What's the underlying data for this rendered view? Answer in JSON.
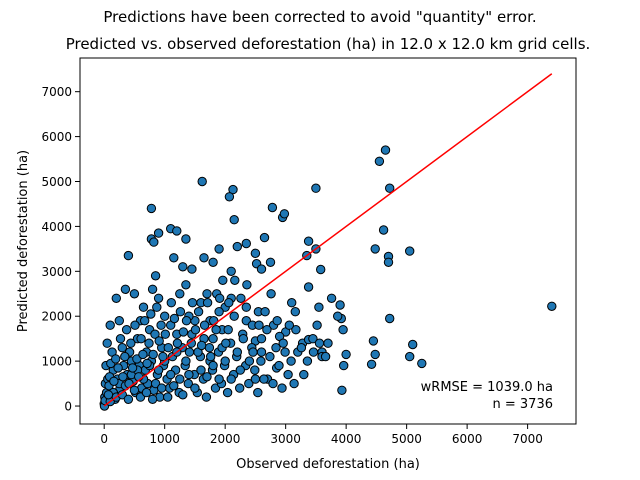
{
  "suptitle": "Predictions have been corrected to avoid \"quantity\" error.",
  "chart_data": {
    "type": "scatter",
    "title": "Predicted vs. observed deforestation (ha) in 12.0 x 12.0 km grid cells.",
    "xlabel": "Observed deforestation (ha)",
    "ylabel": "Predicted deforestation (ha)",
    "xlim": [
      -400,
      7800
    ],
    "ylim": [
      -400,
      7750
    ],
    "xticks": [
      0,
      1000,
      2000,
      3000,
      4000,
      5000,
      6000,
      7000
    ],
    "yticks": [
      0,
      1000,
      2000,
      3000,
      4000,
      5000,
      6000,
      7000
    ],
    "grid": false,
    "identity_line": {
      "from": [
        0,
        0
      ],
      "to": [
        7400,
        7400
      ],
      "color": "#ff0000"
    },
    "point_color": "#1f77b4",
    "point_edge_color": "#000000",
    "annotation_lines": [
      "wRMSE = 1039.0 ha",
      "n = 3736"
    ],
    "annotation_position": "bottom-right",
    "points": [
      [
        7400,
        2220
      ],
      [
        4650,
        5700
      ],
      [
        4550,
        5450
      ],
      [
        4720,
        4850
      ],
      [
        3500,
        4850
      ],
      [
        1620,
        5000
      ],
      [
        2130,
        4820
      ],
      [
        2070,
        4660
      ],
      [
        2780,
        4420
      ],
      [
        2950,
        4200
      ],
      [
        2980,
        4280
      ],
      [
        780,
        4400
      ],
      [
        4620,
        3920
      ],
      [
        4700,
        3330
      ],
      [
        4700,
        3200
      ],
      [
        5050,
        3450
      ],
      [
        4480,
        3500
      ],
      [
        3380,
        3670
      ],
      [
        3350,
        3350
      ],
      [
        3500,
        3500
      ],
      [
        3580,
        3040
      ],
      [
        2650,
        3750
      ],
      [
        2520,
        3170
      ],
      [
        2600,
        3050
      ],
      [
        2750,
        3200
      ],
      [
        2500,
        3400
      ],
      [
        2150,
        4150
      ],
      [
        2200,
        3550
      ],
      [
        2350,
        3620
      ],
      [
        2100,
        3000
      ],
      [
        1900,
        3500
      ],
      [
        1800,
        3200
      ],
      [
        1650,
        3300
      ],
      [
        1100,
        3950
      ],
      [
        1200,
        3900
      ],
      [
        900,
        3850
      ],
      [
        780,
        3720
      ],
      [
        820,
        3650
      ],
      [
        1350,
        3720
      ],
      [
        1150,
        3300
      ],
      [
        1450,
        3050
      ],
      [
        1300,
        3100
      ],
      [
        3380,
        2650
      ],
      [
        3550,
        2200
      ],
      [
        3100,
        2300
      ],
      [
        3170,
        1700
      ],
      [
        3280,
        1400
      ],
      [
        3380,
        1480
      ],
      [
        3900,
        2250
      ],
      [
        3920,
        1950
      ],
      [
        3950,
        1700
      ],
      [
        4720,
        1950
      ],
      [
        5100,
        1370
      ],
      [
        5250,
        950
      ],
      [
        5050,
        1100
      ],
      [
        4450,
        1450
      ],
      [
        4480,
        1150
      ],
      [
        4420,
        930
      ],
      [
        3930,
        350
      ],
      [
        4000,
        1150
      ],
      [
        3600,
        1200
      ],
      [
        3700,
        1400
      ],
      [
        3520,
        1800
      ],
      [
        3450,
        1500
      ],
      [
        3000,
        1650
      ],
      [
        3200,
        1200
      ],
      [
        2900,
        1550
      ],
      [
        2800,
        1800
      ],
      [
        2850,
        850
      ],
      [
        3300,
        700
      ],
      [
        3600,
        1100
      ],
      [
        2700,
        600
      ],
      [
        2600,
        1200
      ],
      [
        2500,
        1450
      ],
      [
        2350,
        1900
      ],
      [
        2100,
        2400
      ],
      [
        2000,
        2200
      ],
      [
        1950,
        1700
      ],
      [
        1900,
        2100
      ],
      [
        1800,
        1500
      ],
      [
        1750,
        1000
      ],
      [
        1700,
        2500
      ],
      [
        1600,
        2300
      ],
      [
        1500,
        1900
      ],
      [
        1400,
        2000
      ],
      [
        1350,
        2700
      ],
      [
        1250,
        2500
      ],
      [
        1200,
        1600
      ],
      [
        1100,
        1800
      ],
      [
        1000,
        2000
      ],
      [
        950,
        1300
      ],
      [
        900,
        2400
      ],
      [
        850,
        2900
      ],
      [
        800,
        2600
      ],
      [
        750,
        1700
      ],
      [
        700,
        1200
      ],
      [
        650,
        2200
      ],
      [
        600,
        1900
      ],
      [
        550,
        1500
      ],
      [
        500,
        2500
      ],
      [
        450,
        1000
      ],
      [
        400,
        3350
      ],
      [
        350,
        2600
      ],
      [
        300,
        1300
      ],
      [
        250,
        1900
      ],
      [
        200,
        2400
      ],
      [
        150,
        800
      ],
      [
        100,
        1800
      ],
      [
        50,
        1400
      ],
      [
        30,
        900
      ],
      [
        20,
        500
      ],
      [
        10,
        200
      ],
      [
        0,
        50
      ],
      [
        5,
        0
      ],
      [
        15,
        120
      ],
      [
        40,
        300
      ],
      [
        60,
        600
      ],
      [
        80,
        450
      ],
      [
        120,
        250
      ],
      [
        180,
        150
      ],
      [
        220,
        600
      ],
      [
        260,
        380
      ],
      [
        320,
        900
      ],
      [
        380,
        700
      ],
      [
        420,
        1200
      ],
      [
        480,
        550
      ],
      [
        520,
        300
      ],
      [
        580,
        900
      ],
      [
        620,
        400
      ],
      [
        680,
        800
      ],
      [
        720,
        500
      ],
      [
        780,
        1000
      ],
      [
        820,
        350
      ],
      [
        880,
        700
      ],
      [
        920,
        200
      ],
      [
        980,
        900
      ],
      [
        1040,
        600
      ],
      [
        1080,
        400
      ],
      [
        1130,
        1100
      ],
      [
        1180,
        800
      ],
      [
        1240,
        300
      ],
      [
        1290,
        1300
      ],
      [
        1340,
        900
      ],
      [
        1390,
        500
      ],
      [
        1440,
        1400
      ],
      [
        1490,
        700
      ],
      [
        1540,
        300
      ],
      [
        1590,
        1100
      ],
      [
        1640,
        600
      ],
      [
        1690,
        200
      ],
      [
        1740,
        1300
      ],
      [
        1790,
        800
      ],
      [
        1840,
        400
      ],
      [
        1890,
        1200
      ],
      [
        1940,
        500
      ],
      [
        1990,
        900
      ],
      [
        2040,
        300
      ],
      [
        2090,
        1400
      ],
      [
        2140,
        700
      ],
      [
        2190,
        1100
      ],
      [
        2240,
        400
      ],
      [
        2290,
        1600
      ],
      [
        2340,
        900
      ],
      [
        2390,
        500
      ],
      [
        2440,
        1300
      ],
      [
        2490,
        800
      ],
      [
        2540,
        300
      ],
      [
        2590,
        1000
      ],
      [
        2640,
        600
      ],
      [
        2690,
        1700
      ],
      [
        2740,
        1100
      ],
      [
        2790,
        500
      ],
      [
        2840,
        1300
      ],
      [
        2890,
        900
      ],
      [
        2940,
        400
      ],
      [
        2990,
        1200
      ],
      [
        3040,
        700
      ],
      [
        3090,
        1000
      ],
      [
        3140,
        500
      ],
      [
        100,
        100
      ],
      [
        150,
        300
      ],
      [
        200,
        200
      ],
      [
        250,
        500
      ],
      [
        300,
        250
      ],
      [
        350,
        450
      ],
      [
        400,
        150
      ],
      [
        450,
        700
      ],
      [
        500,
        350
      ],
      [
        550,
        800
      ],
      [
        600,
        200
      ],
      [
        650,
        600
      ],
      [
        700,
        300
      ],
      [
        750,
        900
      ],
      [
        800,
        150
      ],
      [
        850,
        500
      ],
      [
        900,
        800
      ],
      [
        950,
        400
      ],
      [
        1000,
        1000
      ],
      [
        1050,
        200
      ],
      [
        1100,
        700
      ],
      [
        1150,
        450
      ],
      [
        1200,
        1200
      ],
      [
        1250,
        600
      ],
      [
        1300,
        250
      ],
      [
        1350,
        1000
      ],
      [
        1400,
        700
      ],
      [
        1450,
        1600
      ],
      [
        1500,
        400
      ],
      [
        1550,
        1200
      ],
      [
        1600,
        800
      ],
      [
        1650,
        1500
      ],
      [
        1700,
        650
      ],
      [
        1750,
        1900
      ],
      [
        1800,
        900
      ],
      [
        1850,
        1700
      ],
      [
        1900,
        600
      ],
      [
        1950,
        1300
      ],
      [
        2000,
        1000
      ],
      [
        2050,
        1700
      ],
      [
        2100,
        600
      ],
      [
        2150,
        2000
      ],
      [
        2200,
        1200
      ],
      [
        2250,
        800
      ],
      [
        2300,
        1500
      ],
      [
        2350,
        2200
      ],
      [
        2400,
        1000
      ],
      [
        2450,
        1800
      ],
      [
        2500,
        600
      ],
      [
        2550,
        2100
      ],
      [
        2600,
        1500
      ],
      [
        70,
        250
      ],
      [
        90,
        650
      ],
      [
        110,
        950
      ],
      [
        130,
        1200
      ],
      [
        160,
        550
      ],
      [
        190,
        1050
      ],
      [
        230,
        850
      ],
      [
        270,
        1500
      ],
      [
        310,
        650
      ],
      [
        340,
        1100
      ],
      [
        370,
        1700
      ],
      [
        410,
        500
      ],
      [
        440,
        1400
      ],
      [
        470,
        850
      ],
      [
        510,
        1800
      ],
      [
        540,
        1050
      ],
      [
        570,
        650
      ],
      [
        610,
        1500
      ],
      [
        640,
        1150
      ],
      [
        670,
        1900
      ],
      [
        710,
        950
      ],
      [
        740,
        1400
      ],
      [
        770,
        2050
      ],
      [
        810,
        1150
      ],
      [
        840,
        1600
      ],
      [
        870,
        2200
      ],
      [
        910,
        1450
      ],
      [
        940,
        1800
      ],
      [
        970,
        1100
      ],
      [
        1010,
        1600
      ],
      [
        1060,
        1300
      ],
      [
        1110,
        2300
      ],
      [
        1160,
        1950
      ],
      [
        1210,
        1400
      ],
      [
        1260,
        2100
      ],
      [
        1310,
        1650
      ],
      [
        1360,
        1900
      ],
      [
        1410,
        1200
      ],
      [
        1460,
        2300
      ],
      [
        1510,
        1700
      ],
      [
        1560,
        2100
      ],
      [
        1610,
        1350
      ],
      [
        1660,
        1800
      ],
      [
        1710,
        2300
      ],
      [
        1760,
        1100
      ],
      [
        1810,
        1900
      ],
      [
        1860,
        2500
      ],
      [
        1910,
        2400
      ],
      [
        1960,
        2800
      ],
      [
        2010,
        1400
      ],
      [
        2060,
        2300
      ],
      [
        2160,
        2800
      ],
      [
        2260,
        2400
      ],
      [
        2360,
        2700
      ],
      [
        2460,
        1200
      ],
      [
        2560,
        1800
      ],
      [
        2660,
        2100
      ],
      [
        2760,
        2500
      ],
      [
        2860,
        1900
      ],
      [
        2960,
        1400
      ],
      [
        3060,
        1800
      ],
      [
        3160,
        2100
      ],
      [
        3260,
        1300
      ],
      [
        3360,
        1000
      ],
      [
        3460,
        1200
      ],
      [
        3560,
        1400
      ],
      [
        3660,
        1100
      ],
      [
        3760,
        2400
      ],
      [
        3860,
        2000
      ],
      [
        3960,
        900
      ]
    ]
  }
}
